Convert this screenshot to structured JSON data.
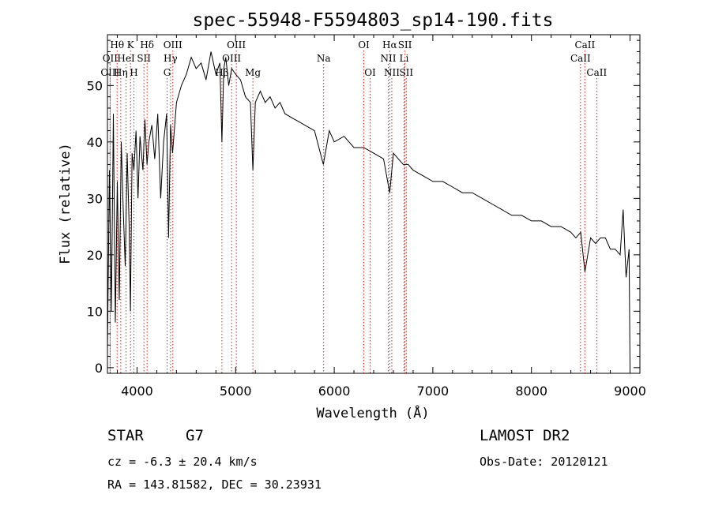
{
  "chart_data": {
    "type": "line",
    "title": "spec-55948-F5594803_sp14-190.fits",
    "xlabel": "Wavelength (Å)",
    "ylabel": "Flux (relative)",
    "xlim": [
      3700,
      9100
    ],
    "ylim": [
      -1,
      59
    ],
    "xticks": [
      4000,
      5000,
      6000,
      7000,
      8000,
      9000
    ],
    "yticks": [
      0,
      10,
      20,
      30,
      40,
      50
    ],
    "grid": false,
    "series": [
      {
        "x": [
          3700,
          3720,
          3740,
          3760,
          3780,
          3800,
          3820,
          3840,
          3860,
          3880,
          3900,
          3920,
          3933,
          3950,
          3968,
          3990,
          4010,
          4030,
          4060,
          4080,
          4101,
          4120,
          4150,
          4180,
          4210,
          4240,
          4270,
          4300,
          4320,
          4340,
          4360,
          4400,
          4450,
          4500,
          4550,
          4600,
          4650,
          4700,
          4750,
          4800,
          4840,
          4861,
          4880,
          4900,
          4930,
          4960,
          5000,
          5050,
          5100,
          5150,
          5175,
          5200,
          5250,
          5300,
          5350,
          5400,
          5450,
          5500,
          5600,
          5700,
          5800,
          5890,
          5950,
          6000,
          6100,
          6200,
          6300,
          6400,
          6500,
          6563,
          6600,
          6650,
          6700,
          6750,
          6800,
          6900,
          7000,
          7100,
          7200,
          7300,
          7400,
          7500,
          7600,
          7700,
          7800,
          7900,
          8000,
          8100,
          8200,
          8300,
          8400,
          8450,
          8500,
          8542,
          8600,
          8650,
          8700,
          8750,
          8800,
          8850,
          8900,
          8930,
          8960,
          8990,
          9000
        ],
        "y": [
          3,
          35,
          10,
          45,
          8,
          33,
          12,
          40,
          28,
          18,
          38,
          25,
          10,
          38,
          35,
          42,
          30,
          41,
          35,
          44,
          36,
          40,
          43,
          37,
          45,
          30,
          40,
          45,
          23,
          43,
          38,
          47,
          50,
          52,
          55,
          53,
          54,
          51,
          56,
          52,
          54,
          40,
          53,
          55,
          50,
          53,
          52,
          51,
          48,
          47,
          35,
          47,
          49,
          47,
          48,
          46,
          47,
          45,
          44,
          43,
          42,
          36,
          42,
          40,
          41,
          39,
          39,
          38,
          37,
          31,
          38,
          37,
          36,
          36,
          35,
          34,
          33,
          33,
          32,
          31,
          31,
          30,
          29,
          28,
          27,
          27,
          26,
          26,
          25,
          25,
          24,
          23,
          24,
          17,
          23,
          22,
          23,
          23,
          21,
          21,
          20,
          28,
          16,
          21,
          0
        ]
      }
    ],
    "lines": [
      {
        "label": "Hθ",
        "wave": 3798,
        "row": 0
      },
      {
        "label": "OII",
        "wave": 3727,
        "row": 1
      },
      {
        "label": "OIII",
        "wave": 3727,
        "row": 2
      },
      {
        "label": "Hη",
        "wave": 3835,
        "row": 2
      },
      {
        "label": "K",
        "wave": 3934,
        "row": 0
      },
      {
        "label": "HeI",
        "wave": 3889,
        "row": 1
      },
      {
        "label": "SII",
        "wave": 4070,
        "row": 1
      },
      {
        "label": "H",
        "wave": 3968,
        "row": 2
      },
      {
        "label": "Hδ",
        "wave": 4102,
        "row": 0
      },
      {
        "label": "OIII",
        "wave": 4363,
        "row": 0
      },
      {
        "label": "Hγ",
        "wave": 4340,
        "row": 1
      },
      {
        "label": "G",
        "wave": 4305,
        "row": 2
      },
      {
        "label": "OIII",
        "wave": 5007,
        "row": 0
      },
      {
        "label": "OIII",
        "wave": 4959,
        "row": 1
      },
      {
        "label": "Hβ",
        "wave": 4861,
        "row": 2
      },
      {
        "label": "Mg",
        "wave": 5175,
        "row": 2
      },
      {
        "label": "Na",
        "wave": 5893,
        "row": 1
      },
      {
        "label": "OI",
        "wave": 6300,
        "row": 0
      },
      {
        "label": "OI",
        "wave": 6364,
        "row": 2
      },
      {
        "label": "Hα",
        "wave": 6563,
        "row": 0
      },
      {
        "label": "SII",
        "wave": 6717,
        "row": 0
      },
      {
        "label": "NII",
        "wave": 6548,
        "row": 1
      },
      {
        "label": "Li",
        "wave": 6708,
        "row": 1
      },
      {
        "label": "NII",
        "wave": 6584,
        "row": 2
      },
      {
        "label": "SII",
        "wave": 6731,
        "row": 2
      },
      {
        "label": "CaII",
        "wave": 8542,
        "row": 0
      },
      {
        "label": "CaII",
        "wave": 8498,
        "row": 1
      },
      {
        "label": "CaII",
        "wave": 8662,
        "row": 2
      }
    ]
  },
  "info": {
    "class": "STAR",
    "subclass": "G7",
    "cz": "cz = -6.3 ± 20.4 km/s",
    "coords": "RA = 143.81582, DEC =  30.23931",
    "survey": "LAMOST DR2",
    "obsdate": "Obs-Date: 20120121"
  }
}
